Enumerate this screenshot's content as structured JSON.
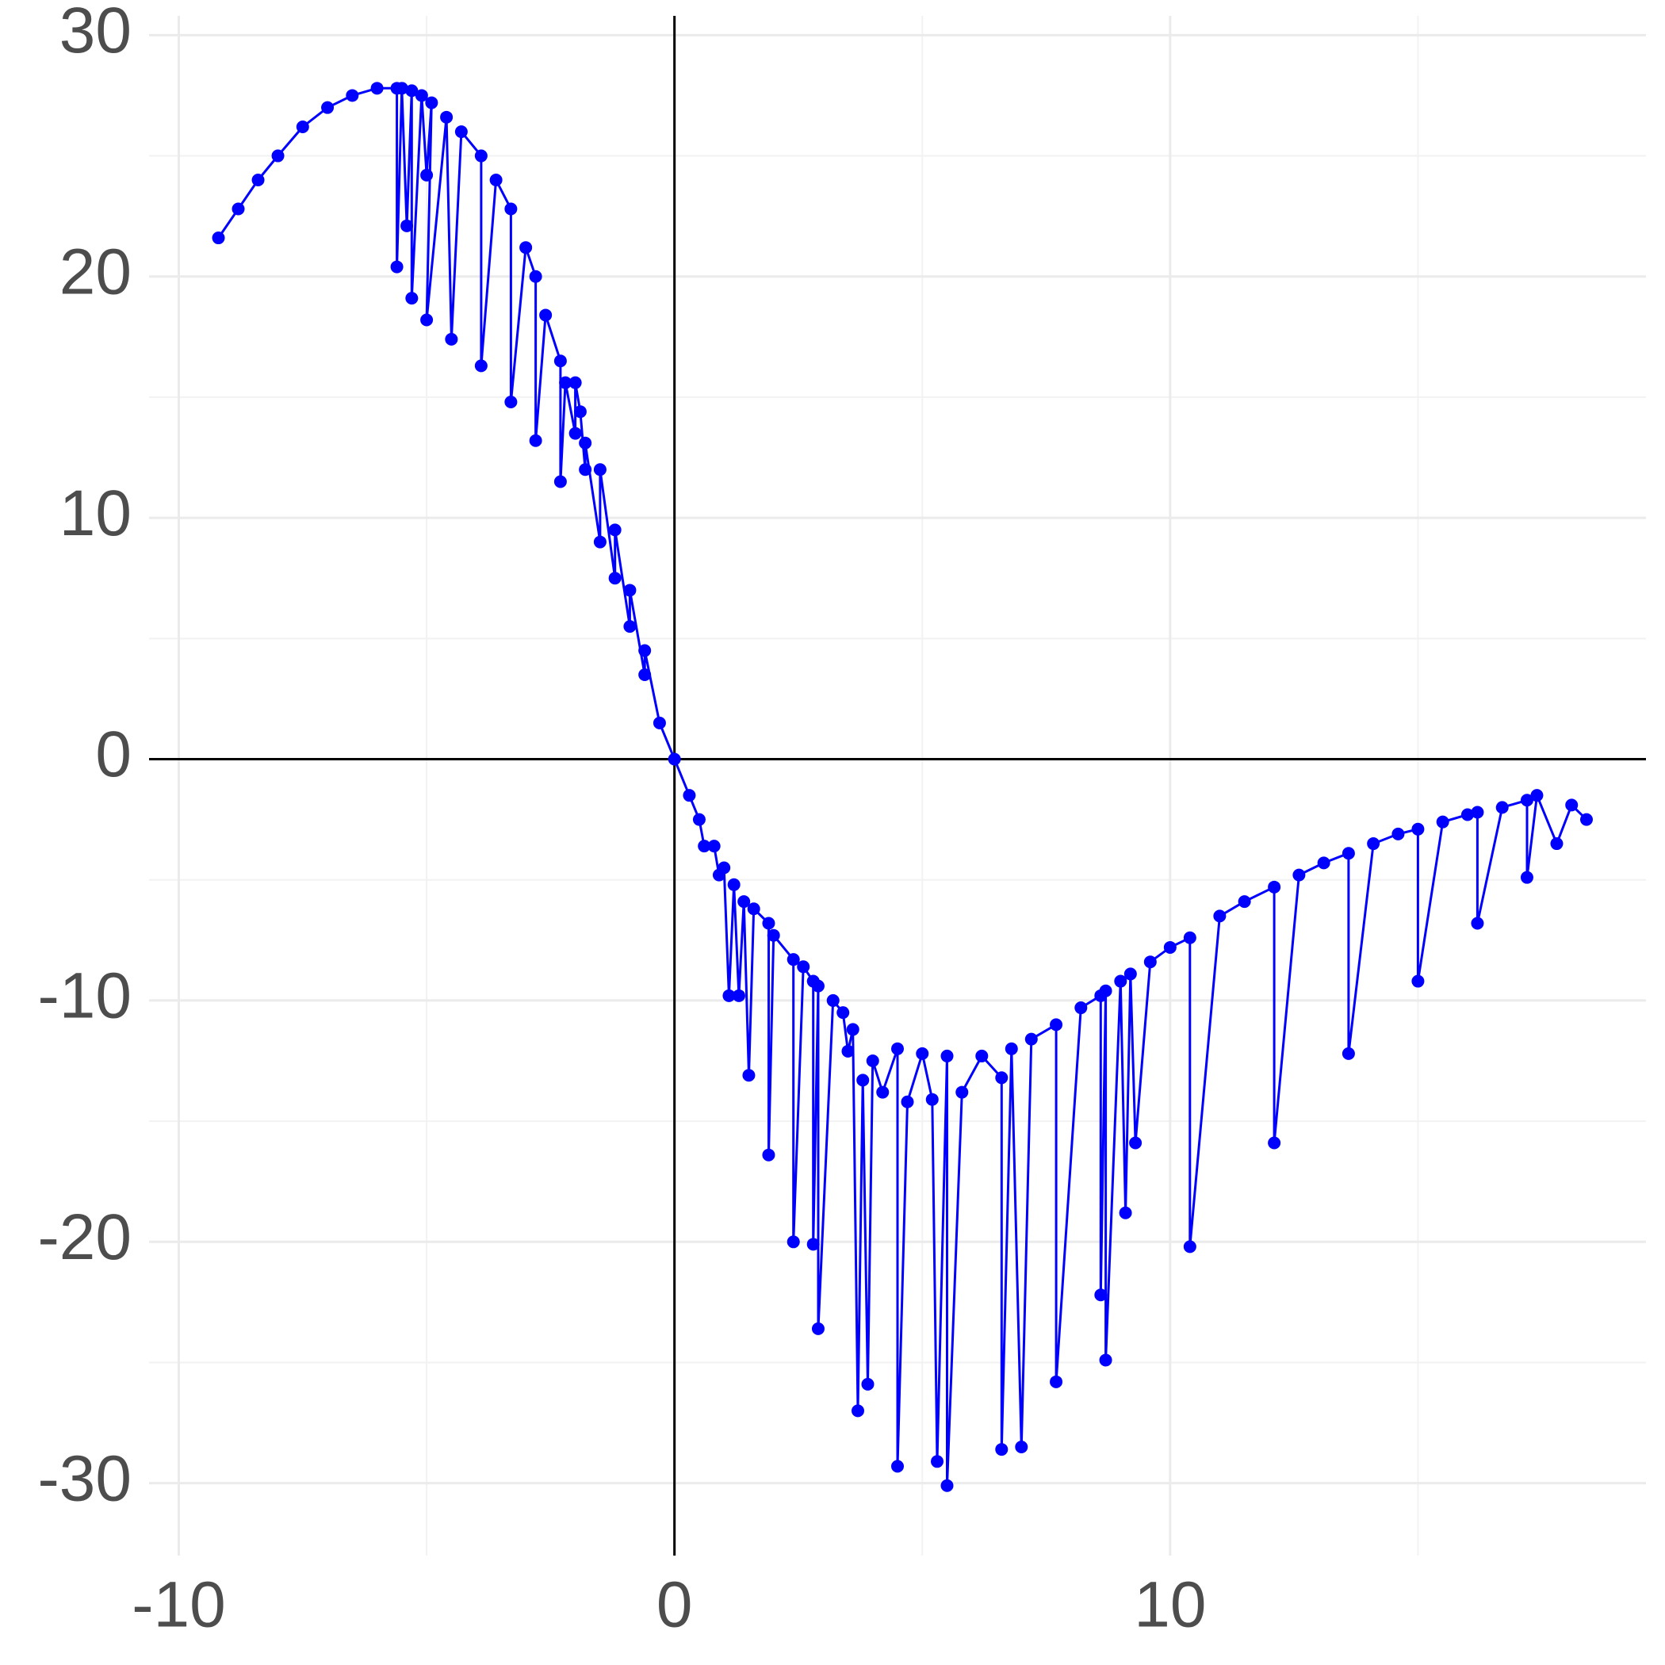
{
  "chart_data": {
    "type": "line",
    "color": "#0000ff",
    "markers": true,
    "grid": true,
    "zero_lines": true,
    "xlim": [
      -10.6,
      19.6
    ],
    "ylim": [
      -33,
      30.8
    ],
    "xticks": [
      -10,
      0,
      10
    ],
    "yticks": [
      -30,
      -20,
      -10,
      0,
      10,
      20,
      30
    ],
    "x_minor_grid": [
      -5,
      5,
      15
    ],
    "y_minor_grid": [
      -25,
      -15,
      -5,
      5,
      15,
      25
    ],
    "x": [
      -9.2,
      -8.8,
      -8.4,
      -8.0,
      -7.5,
      -7.0,
      -6.5,
      -6.0,
      -5.6,
      -5.6,
      -5.5,
      -5.4,
      -5.3,
      -5.3,
      -5.1,
      -5.0,
      -4.9,
      -5.0,
      -4.6,
      -4.5,
      -4.3,
      -3.9,
      -3.9,
      -3.6,
      -3.3,
      -3.3,
      -3.0,
      -2.8,
      -2.8,
      -2.6,
      -2.3,
      -2.3,
      -2.2,
      -2.0,
      -2.0,
      -1.9,
      -1.8,
      -1.8,
      -1.5,
      -1.5,
      -1.2,
      -1.2,
      -0.9,
      -0.9,
      -0.6,
      -0.6,
      -0.3,
      0.0,
      0.3,
      0.5,
      0.6,
      0.8,
      0.9,
      1.0,
      1.1,
      1.2,
      1.3,
      1.4,
      1.5,
      1.6,
      1.9,
      1.9,
      2.0,
      2.4,
      2.4,
      2.6,
      2.8,
      2.8,
      2.9,
      2.9,
      3.2,
      3.4,
      3.5,
      3.6,
      3.7,
      3.8,
      3.9,
      4.0,
      4.2,
      4.5,
      4.5,
      4.7,
      5.0,
      5.2,
      5.3,
      5.5,
      5.5,
      5.8,
      6.2,
      6.6,
      6.6,
      6.8,
      7.0,
      7.2,
      7.7,
      7.7,
      8.2,
      8.6,
      8.6,
      8.7,
      8.7,
      9.0,
      9.1,
      9.2,
      9.3,
      9.6,
      10.0,
      10.4,
      10.4,
      11.0,
      11.5,
      12.1,
      12.1,
      12.6,
      13.1,
      13.6,
      13.6,
      14.1,
      14.6,
      15.0,
      15.0,
      15.5,
      16.0,
      16.2,
      16.2,
      16.7,
      17.2,
      17.2,
      17.4,
      17.8,
      18.1,
      18.4
    ],
    "values": [
      21.6,
      22.8,
      24.0,
      25.0,
      26.2,
      27.0,
      27.5,
      27.8,
      27.8,
      20.4,
      27.8,
      22.1,
      27.7,
      19.1,
      27.5,
      24.2,
      27.2,
      18.2,
      26.6,
      17.4,
      26.0,
      25.0,
      16.3,
      24.0,
      22.8,
      14.8,
      21.2,
      20.0,
      13.2,
      18.4,
      16.5,
      11.5,
      15.6,
      13.5,
      15.6,
      14.4,
      12.0,
      13.1,
      9.0,
      12.0,
      7.5,
      9.5,
      5.5,
      7.0,
      3.5,
      4.5,
      1.5,
      0.0,
      -1.5,
      -2.5,
      -3.6,
      -3.6,
      -4.8,
      -4.5,
      -9.8,
      -5.2,
      -9.8,
      -5.9,
      -13.1,
      -6.2,
      -6.8,
      -16.4,
      -7.3,
      -8.3,
      -20.0,
      -8.6,
      -9.2,
      -20.1,
      -9.4,
      -23.6,
      -10.0,
      -10.5,
      -12.1,
      -11.2,
      -27.0,
      -13.3,
      -25.9,
      -12.5,
      -13.8,
      -12.0,
      -29.3,
      -14.2,
      -12.2,
      -14.1,
      -29.1,
      -12.3,
      -30.1,
      -13.8,
      -12.3,
      -13.2,
      -28.6,
      -12.0,
      -28.5,
      -11.6,
      -11.0,
      -25.8,
      -10.3,
      -9.8,
      -22.2,
      -9.6,
      -24.9,
      -9.2,
      -18.8,
      -8.9,
      -15.9,
      -8.4,
      -7.8,
      -7.4,
      -20.2,
      -6.5,
      -5.9,
      -5.3,
      -15.9,
      -4.8,
      -4.3,
      -3.9,
      -12.2,
      -3.5,
      -3.1,
      -2.9,
      -9.2,
      -2.6,
      -2.3,
      -2.2,
      -6.8,
      -2.0,
      -1.7,
      -4.9,
      -1.5,
      -3.5,
      -1.9,
      -2.5
    ]
  }
}
